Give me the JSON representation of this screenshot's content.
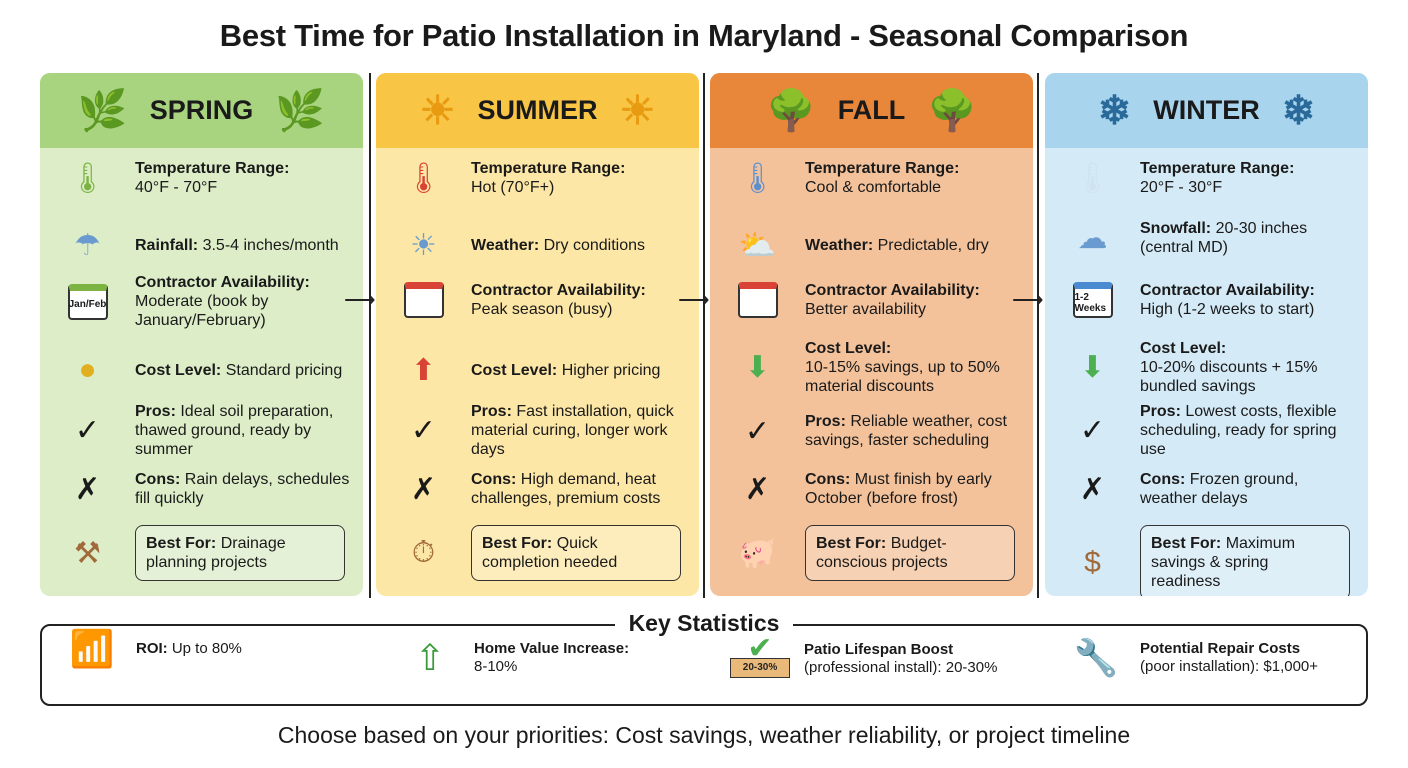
{
  "title": "Best Time for Patio Installation in Maryland - Seasonal Comparison",
  "colors": {
    "spring_header": "#a8d47f",
    "spring_body": "#dcedc8",
    "summer_header": "#f8c545",
    "summer_body": "#fde7a6",
    "fall_header": "#e8863a",
    "fall_body": "#f3c29b",
    "winter_header": "#a8d4ee",
    "winter_body": "#d4eaf6"
  },
  "seasons": [
    {
      "name": "SPRING",
      "temp_label": "Temperature Range:",
      "temp": "40°F - 70°F",
      "weather_label": "Rainfall:",
      "weather": "3.5-4 inches/month",
      "contractor_label": "Contractor Availability:",
      "contractor": "Moderate (book by January/February)",
      "calendar_text": "Jan/Feb",
      "cost_label": "Cost Level:",
      "cost": "Standard pricing",
      "pros_label": "Pros:",
      "pros": "Ideal soil preparation, thawed ground, ready by summer",
      "cons_label": "Cons:",
      "cons": "Rain delays, schedules fill quickly",
      "best_label": "Best For:",
      "best": "Drainage planning projects"
    },
    {
      "name": "SUMMER",
      "temp_label": "Temperature Range:",
      "temp": "Hot (70°F+)",
      "weather_label": "Weather:",
      "weather": "Dry conditions",
      "contractor_label": "Contractor Availability:",
      "contractor": "Peak season (busy)",
      "calendar_text": "",
      "cost_label": "Cost Level:",
      "cost": "Higher pricing",
      "pros_label": "Pros:",
      "pros": "Fast installation, quick material curing, longer work days",
      "cons_label": "Cons:",
      "cons": "High demand, heat challenges, premium costs",
      "best_label": "Best For:",
      "best": "Quick completion needed"
    },
    {
      "name": "FALL",
      "temp_label": "Temperature Range:",
      "temp": "Cool & comfortable",
      "weather_label": "Weather:",
      "weather": "Predictable, dry",
      "contractor_label": "Contractor Availability:",
      "contractor": "Better availability",
      "calendar_text": "",
      "cost_label": "Cost Level:",
      "cost": "10-15% savings, up to 50% material discounts",
      "pros_label": "Pros:",
      "pros": "Reliable weather, cost savings, faster scheduling",
      "cons_label": "Cons:",
      "cons": "Must finish by early October (before frost)",
      "best_label": "Best For:",
      "best": "Budget-conscious projects"
    },
    {
      "name": "WINTER",
      "temp_label": "Temperature Range:",
      "temp": "20°F - 30°F",
      "weather_label": "Snowfall:",
      "weather": "20-30 inches (central MD)",
      "contractor_label": "Contractor Availability:",
      "contractor": "High (1-2 weeks to start)",
      "calendar_text": "1-2 Weeks",
      "cost_label": "Cost Level:",
      "cost": "10-20% discounts + 15% bundled savings",
      "pros_label": "Pros:",
      "pros": "Lowest costs, flexible scheduling, ready for spring use",
      "cons_label": "Cons:",
      "cons": "Frozen ground, weather delays",
      "best_label": "Best For:",
      "best": "Maximum savings & spring readiness"
    }
  ],
  "stats": {
    "title": "Key Statistics",
    "items": [
      {
        "label": "ROI:",
        "value": "Up to 80%"
      },
      {
        "label": "Home Value Increase:",
        "value": "8-10%"
      },
      {
        "label": "Patio Lifespan Boost",
        "value": "(professional install): 20-30%",
        "badge": "20-30%"
      },
      {
        "label": "Potential Repair Costs",
        "value": "(poor installation): $1,000+"
      }
    ]
  },
  "footer": "Choose based on your priorities: Cost savings, weather reliability, or project timeline"
}
